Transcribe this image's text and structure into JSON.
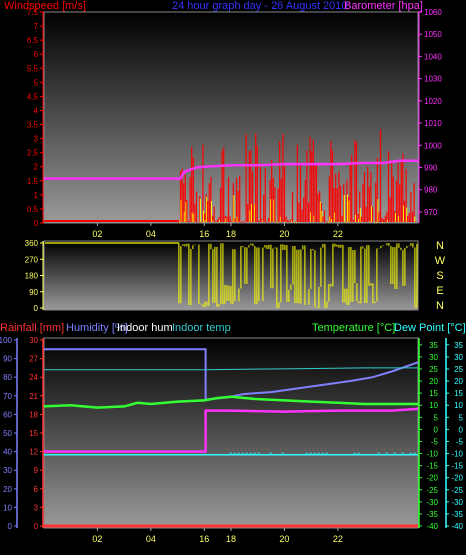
{
  "header": {
    "windspeed_label": "Windspeed [m/s]",
    "title": "24 hour graph day - 26 August 2010",
    "barometer_label": "Barometer [hpa]"
  },
  "colors": {
    "wind_speed": "#ff0000",
    "wind_gust": "#ffff00",
    "barometer": "#ff33ff",
    "wind_dir": "#ffff00",
    "rainfall": "#ff3333",
    "humidity": "#8080ff",
    "indoor_hum": "#ff33ff",
    "indoor_temp": "#33cccc",
    "temperature": "#33ff33",
    "dew_point": "#33ffff",
    "axis_label": "#ffff66",
    "plot_top": "#000000",
    "plot_bottom": "#9a9a9a"
  },
  "chart_data": [
    {
      "name": "wind_barometer",
      "type": "line",
      "title": "24 hour graph day - 26 August 2010",
      "ylabel": "Windspeed [m/s]",
      "y2label": "Barometer [hpa]",
      "x_ticks": [
        "02",
        "04",
        "16",
        "18",
        "20",
        "22"
      ],
      "y_ticks": [
        "0",
        "0.5",
        "1",
        "1.5",
        "2",
        "2.5",
        "3",
        "3.5",
        "4",
        "4.5",
        "5",
        "5.5",
        "6",
        "6.5",
        "7",
        "7.5"
      ],
      "y2_ticks": [
        "970",
        "980",
        "990",
        "1000",
        "1010",
        "1020",
        "1030",
        "1040",
        "1050",
        "1060"
      ],
      "ylim": [
        0,
        7.5
      ],
      "y2lim": [
        965,
        1060
      ],
      "series": [
        {
          "key": "barometer",
          "axis": "y2",
          "x": [
            0,
            5.1,
            5.25,
            5.7,
            6.2,
            7,
            8,
            9,
            10,
            11,
            12,
            12.7,
            13.3,
            14
          ],
          "values": [
            985,
            985,
            988,
            990,
            990.5,
            991,
            991,
            991.5,
            991.5,
            991.5,
            992,
            992,
            993,
            993
          ]
        },
        {
          "key": "wind_speed_flat",
          "axis": "y",
          "x": [
            0,
            5.05
          ],
          "values": [
            0,
            0
          ]
        }
      ]
    },
    {
      "name": "wind_direction",
      "type": "line",
      "y_ticks": [
        "360",
        "270",
        "180",
        "90",
        "0"
      ],
      "compass": [
        "N",
        "W",
        "S",
        "E",
        "N"
      ],
      "ylim": [
        0,
        360
      ]
    },
    {
      "name": "temperature_humidity",
      "type": "line",
      "labels": {
        "rainfall": "Rainfall [mm]",
        "humidity": "Humidity [%]",
        "indoor_hum": "Indoor hum",
        "indoor_temp": "Indoor temp",
        "temperature": "Temperature [°C]",
        "dew_point": "Dew Point [°C]"
      },
      "x_ticks": [
        "02",
        "04",
        "16",
        "18",
        "20",
        "22"
      ],
      "y_ticks_rain": [
        "0",
        "10",
        "20",
        "30",
        "40",
        "50",
        "60",
        "70",
        "80",
        "90",
        "100"
      ],
      "y_ticks_hum": [
        "0",
        "3",
        "6",
        "9",
        "12",
        "15",
        "18",
        "21",
        "24",
        "27",
        "30"
      ],
      "y_ticks_temp": [
        "-40",
        "-35",
        "-30",
        "-25",
        "-20",
        "-15",
        "-10",
        "-5",
        "0",
        "5",
        "10",
        "15",
        "20",
        "25",
        "30",
        "35"
      ],
      "y_ticks_dew": [
        "-40",
        "-35",
        "-30",
        "-25",
        "-20",
        "-15",
        "-10",
        "-5",
        "0",
        "5",
        "10",
        "15",
        "20",
        "25",
        "30",
        "35"
      ],
      "ylim_temp": [
        -40,
        37
      ],
      "series": [
        {
          "key": "humidity",
          "axis": "pct",
          "x": [
            0,
            6.05,
            6.05,
            6.8,
            7.5,
            8.5,
            9.5,
            10.5,
            11.5,
            12.3,
            13,
            13.6,
            14
          ],
          "values": [
            95,
            95,
            68,
            69,
            71,
            72,
            74,
            76,
            78,
            80,
            83,
            86,
            88
          ]
        },
        {
          "key": "indoor_hum",
          "axis": "pct",
          "x": [
            0,
            6.05,
            6.05,
            7,
            9,
            11,
            13,
            14
          ],
          "values": [
            40,
            40,
            62,
            62,
            61.5,
            62,
            62,
            63
          ]
        },
        {
          "key": "indoor_temp",
          "axis": "pct",
          "x": [
            0,
            3,
            6,
            9,
            12,
            14
          ],
          "values": [
            84,
            84,
            84,
            84.5,
            85,
            85
          ]
        },
        {
          "key": "temperature",
          "axis": "temp",
          "x": [
            0,
            1,
            2,
            3,
            3.5,
            4,
            5,
            6,
            6.5,
            7,
            8,
            9,
            10,
            11,
            12,
            13,
            14
          ],
          "values": [
            9.5,
            10,
            9,
            9.5,
            11,
            10.5,
            11.5,
            12,
            13,
            13.5,
            12.5,
            12,
            11.5,
            11,
            10.5,
            10.5,
            10.5
          ]
        },
        {
          "key": "dew_point",
          "axis": "temp",
          "x": [
            0,
            14
          ],
          "values": [
            -10.5,
            -10.5
          ]
        },
        {
          "key": "rainfall",
          "axis": "pct",
          "x": [
            0,
            14
          ],
          "values": [
            0,
            0
          ]
        }
      ]
    }
  ]
}
